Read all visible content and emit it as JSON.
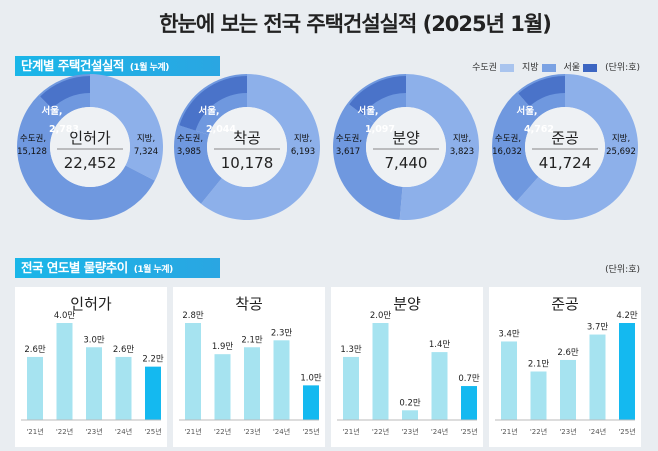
{
  "title": "한눈에 보는 전국 주택건설실적 (2025년 1월)",
  "section1": {
    "label": "단계별 주택건설실적",
    "sub": "(1월 누계)"
  },
  "legend": {
    "items": [
      {
        "label": "수도권",
        "color": "#a9c4ee"
      },
      {
        "label": "지방",
        "color": "#7ba2e3"
      },
      {
        "label": "서울",
        "color": "#3d66c2"
      }
    ],
    "unit": "(단위:호)"
  },
  "section2": {
    "label": "전국 연도별 물량추이",
    "sub": "(1월 누계)",
    "unit": "(단위:호)"
  },
  "colors": {
    "jibang": "#8db0ea",
    "sudogwon": "#6f98df",
    "seoul": "#4a73c9",
    "bar": "#a6e3f0",
    "bar_current": "#14b9f0"
  },
  "chart_data": [
    {
      "type": "pie",
      "title": "인허가",
      "total": "22,452",
      "segments": [
        {
          "name": "지방",
          "value": 7324,
          "label": "7,324"
        },
        {
          "name": "수도권",
          "value": 15128,
          "label": "15,128"
        },
        {
          "name": "서울",
          "value": 2783,
          "label": "2,783"
        }
      ]
    },
    {
      "type": "pie",
      "title": "착공",
      "total": "10,178",
      "segments": [
        {
          "name": "지방",
          "value": 6193,
          "label": "6,193"
        },
        {
          "name": "수도권",
          "value": 3985,
          "label": "3,985"
        },
        {
          "name": "서울",
          "value": 2044,
          "label": "2,044"
        }
      ]
    },
    {
      "type": "pie",
      "title": "분양",
      "total": "7,440",
      "segments": [
        {
          "name": "지방",
          "value": 3823,
          "label": "3,823"
        },
        {
          "name": "수도권",
          "value": 3617,
          "label": "3,617"
        },
        {
          "name": "서울",
          "value": 1097,
          "label": "1,097"
        }
      ]
    },
    {
      "type": "pie",
      "title": "준공",
      "total": "41,724",
      "segments": [
        {
          "name": "지방",
          "value": 25692,
          "label": "25,692"
        },
        {
          "name": "수도권",
          "value": 16032,
          "label": "16,032"
        },
        {
          "name": "서울",
          "value": 4762,
          "label": "4,762"
        }
      ]
    },
    {
      "type": "bar",
      "title": "인허가",
      "categories": [
        "'21년",
        "'22년",
        "'23년",
        "'24년",
        "'25년"
      ],
      "values": [
        2.6,
        4.0,
        3.0,
        2.6,
        2.2
      ],
      "labels": [
        "2.6만",
        "4.0만",
        "3.0만",
        "2.6만",
        "2.2만"
      ]
    },
    {
      "type": "bar",
      "title": "착공",
      "categories": [
        "'21년",
        "'22년",
        "'23년",
        "'24년",
        "'25년"
      ],
      "values": [
        2.8,
        1.9,
        2.1,
        2.3,
        1.0
      ],
      "labels": [
        "2.8만",
        "1.9만",
        "2.1만",
        "2.3만",
        "1.0만"
      ]
    },
    {
      "type": "bar",
      "title": "분양",
      "categories": [
        "'21년",
        "'22년",
        "'23년",
        "'24년",
        "'25년"
      ],
      "values": [
        1.3,
        2.0,
        0.2,
        1.4,
        0.7
      ],
      "labels": [
        "1.3만",
        "2.0만",
        "0.2만",
        "1.4만",
        "0.7만"
      ]
    },
    {
      "type": "bar",
      "title": "준공",
      "categories": [
        "'21년",
        "'22년",
        "'23년",
        "'24년",
        "'25년"
      ],
      "values": [
        3.4,
        2.1,
        2.6,
        3.7,
        4.2
      ],
      "labels": [
        "3.4만",
        "2.1만",
        "2.6만",
        "3.7만",
        "4.2만"
      ]
    }
  ]
}
